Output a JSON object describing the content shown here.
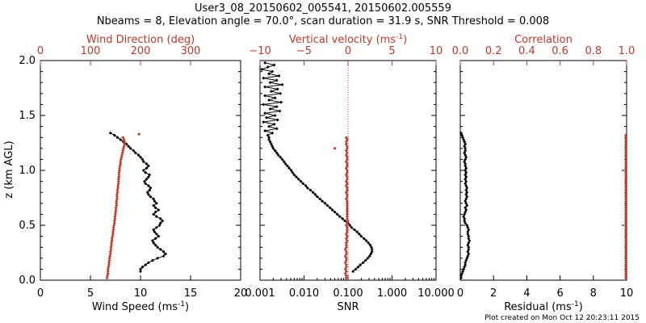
{
  "figure": {
    "title_line1": "User3_08_20150602_005541, 20150602.005559",
    "title_line2": "Nbeams = 8, Elevation angle = 70.0°, scan duration = 31.9 s, SNR Threshold = 0.008",
    "footer": "Plot created on Mon Oct 12 20:23:11 2015",
    "ylabel": "z (km AGL)"
  },
  "colors": {
    "primary": "#000000",
    "secondary": "#c0392b"
  },
  "chart_data": [
    {
      "type": "line",
      "panel": "wind",
      "ylim": [
        0,
        2
      ],
      "yticks": [
        "0.0",
        "0.5",
        "1.0",
        "1.5",
        "2.0"
      ],
      "bottom_axis": {
        "label": "Wind Speed (ms",
        "label_sup": "-1",
        "label_end": ")",
        "range": [
          0,
          20
        ],
        "ticks": [
          "0",
          "5",
          "10",
          "15",
          "20"
        ]
      },
      "top_axis": {
        "label": "Wind Direction (deg)",
        "range": [
          0,
          400
        ],
        "ticks": [
          "0",
          "100",
          "200",
          "300"
        ]
      },
      "series": [
        {
          "axis": "bottom",
          "style": "line-markers",
          "color": "#000000",
          "z": [
            0.08,
            0.1,
            0.12,
            0.14,
            0.16,
            0.18,
            0.2,
            0.22,
            0.24,
            0.26,
            0.28,
            0.3,
            0.32,
            0.34,
            0.36,
            0.38,
            0.4,
            0.42,
            0.44,
            0.46,
            0.48,
            0.5,
            0.52,
            0.54,
            0.56,
            0.58,
            0.6,
            0.62,
            0.64,
            0.66,
            0.68,
            0.7,
            0.72,
            0.74,
            0.76,
            0.78,
            0.8,
            0.82,
            0.84,
            0.86,
            0.88,
            0.9,
            0.92,
            0.94,
            0.96,
            0.98,
            1.0,
            1.02,
            1.04,
            1.06,
            1.08,
            1.1,
            1.12,
            1.14,
            1.16,
            1.18,
            1.2,
            1.22,
            1.24,
            1.26,
            1.28,
            1.3,
            1.32,
            1.34
          ],
          "values": [
            10.0,
            10.0,
            10.2,
            10.5,
            10.8,
            11.2,
            11.7,
            12.3,
            12.5,
            12.3,
            12.0,
            11.7,
            11.5,
            11.3,
            11.2,
            11.5,
            11.8,
            11.6,
            11.4,
            11.3,
            11.6,
            11.9,
            12.0,
            12.2,
            12.0,
            11.6,
            11.3,
            11.5,
            11.8,
            11.5,
            11.3,
            11.6,
            11.4,
            11.3,
            11.0,
            10.8,
            10.7,
            10.9,
            11.0,
            10.8,
            10.5,
            10.4,
            10.6,
            10.8,
            10.9,
            10.5,
            10.3,
            10.6,
            10.8,
            10.6,
            10.3,
            10.2,
            10.0,
            9.8,
            9.5,
            9.3,
            9.0,
            8.8,
            8.6,
            8.3,
            8.0,
            7.7,
            7.4,
            7.0
          ]
        },
        {
          "axis": "top",
          "style": "markers",
          "color": "#c0392b",
          "z": [
            0.02,
            0.04,
            0.06,
            0.08,
            0.1,
            0.12,
            0.14,
            0.16,
            0.18,
            0.2,
            0.22,
            0.24,
            0.26,
            0.28,
            0.3,
            0.32,
            0.34,
            0.36,
            0.38,
            0.4,
            0.42,
            0.44,
            0.46,
            0.48,
            0.5,
            0.52,
            0.54,
            0.56,
            0.58,
            0.6,
            0.62,
            0.64,
            0.66,
            0.68,
            0.7,
            0.72,
            0.74,
            0.76,
            0.78,
            0.8,
            0.82,
            0.84,
            0.86,
            0.88,
            0.9,
            0.92,
            0.94,
            0.96,
            0.98,
            1.0,
            1.02,
            1.04,
            1.06,
            1.08,
            1.1,
            1.12,
            1.14,
            1.16,
            1.18,
            1.2,
            1.22,
            1.24,
            1.26,
            1.28,
            1.3
          ],
          "values": [
            133,
            134,
            135,
            135,
            135,
            136,
            137,
            137,
            138,
            138,
            139,
            140,
            140,
            141,
            141,
            142,
            142,
            143,
            143,
            144,
            145,
            145,
            146,
            146,
            147,
            148,
            148,
            149,
            149,
            150,
            150,
            151,
            151,
            152,
            152,
            152,
            153,
            153,
            153,
            154,
            154,
            155,
            155,
            156,
            156,
            156,
            157,
            157,
            157,
            158,
            158,
            159,
            160,
            160,
            161,
            162,
            163,
            164,
            165,
            166,
            167,
            168,
            168,
            167,
            165
          ]
        },
        {
          "axis": "top",
          "style": "markers",
          "color": "#c0392b",
          "note_free": true,
          "z": [
            1.33
          ],
          "values": [
            197
          ]
        }
      ]
    },
    {
      "type": "line",
      "panel": "snr",
      "ylim": [
        0,
        2
      ],
      "bottom_axis": {
        "label": "SNR",
        "scale": "log",
        "range": [
          0.001,
          10
        ],
        "ticks": [
          "0.001",
          "0.010",
          "0.100",
          "1.000",
          "10.000"
        ]
      },
      "top_axis": {
        "label": "Vertical velocity (ms",
        "label_sup": "-1",
        "label_end": ")",
        "range": [
          -10,
          10
        ],
        "ticks": [
          "−10",
          "−5",
          "0",
          "5",
          "10"
        ],
        "reference_line_at": 0
      },
      "series": [
        {
          "axis": "bottom",
          "style": "line-markers",
          "color": "#000000",
          "z": [
            0.08,
            0.1,
            0.12,
            0.14,
            0.16,
            0.18,
            0.2,
            0.22,
            0.24,
            0.26,
            0.28,
            0.3,
            0.32,
            0.34,
            0.36,
            0.38,
            0.4,
            0.42,
            0.44,
            0.46,
            0.48,
            0.5,
            0.52,
            0.54,
            0.56,
            0.58,
            0.6,
            0.62,
            0.64,
            0.66,
            0.68,
            0.7,
            0.72,
            0.74,
            0.76,
            0.78,
            0.8,
            0.82,
            0.84,
            0.86,
            0.88,
            0.9,
            0.92,
            0.94,
            0.96,
            0.98,
            1.0,
            1.02,
            1.04,
            1.06,
            1.08,
            1.1,
            1.12,
            1.14,
            1.16,
            1.18,
            1.2,
            1.22,
            1.24,
            1.26,
            1.28,
            1.3,
            1.32,
            1.34,
            1.36,
            1.38,
            1.4,
            1.42,
            1.44,
            1.46,
            1.48,
            1.5,
            1.52,
            1.54,
            1.56,
            1.58,
            1.6,
            1.62,
            1.64,
            1.66,
            1.68,
            1.7,
            1.72,
            1.74,
            1.76,
            1.78,
            1.8,
            1.82,
            1.84,
            1.86,
            1.88,
            1.9,
            1.92,
            1.94,
            1.96,
            1.98
          ],
          "values": [
            0.13,
            0.15,
            0.17,
            0.19,
            0.22,
            0.25,
            0.28,
            0.31,
            0.33,
            0.35,
            0.35,
            0.34,
            0.32,
            0.29,
            0.26,
            0.23,
            0.2,
            0.18,
            0.16,
            0.14,
            0.12,
            0.11,
            0.1,
            0.085,
            0.075,
            0.065,
            0.057,
            0.05,
            0.044,
            0.039,
            0.034,
            0.03,
            0.026,
            0.023,
            0.02,
            0.018,
            0.016,
            0.014,
            0.012,
            0.011,
            0.0095,
            0.0085,
            0.0075,
            0.0067,
            0.006,
            0.0055,
            0.0051,
            0.0046,
            0.0042,
            0.0038,
            0.0035,
            0.0032,
            0.0029,
            0.0026,
            0.0024,
            0.0022,
            0.002,
            0.0019,
            0.0018,
            0.0017,
            0.0016,
            0.0016,
            0.0015,
            0.0019,
            0.0013,
            0.0024,
            0.0016,
            0.0021,
            0.0012,
            0.0025,
            0.0014,
            0.0022,
            0.0013,
            0.0028,
            0.0017,
            0.0024,
            0.0012,
            0.003,
            0.0016,
            0.0022,
            0.0013,
            0.0029,
            0.0018,
            0.0025,
            0.0013,
            0.0032,
            0.0017,
            0.0024,
            0.0012,
            0.0027,
            0.0016,
            0.0019,
            0.0011,
            0.0015,
            0.0021,
            0.0013
          ]
        },
        {
          "axis": "top",
          "style": "markers",
          "color": "#c0392b",
          "z": [
            0.02,
            0.04,
            0.06,
            0.08,
            0.1,
            0.12,
            0.14,
            0.16,
            0.18,
            0.2,
            0.22,
            0.24,
            0.26,
            0.28,
            0.3,
            0.32,
            0.34,
            0.36,
            0.38,
            0.4,
            0.42,
            0.44,
            0.46,
            0.48,
            0.5,
            0.52,
            0.54,
            0.56,
            0.58,
            0.6,
            0.62,
            0.64,
            0.66,
            0.68,
            0.7,
            0.72,
            0.74,
            0.76,
            0.78,
            0.8,
            0.82,
            0.84,
            0.86,
            0.88,
            0.9,
            0.92,
            0.94,
            0.96,
            0.98,
            1.0,
            1.02,
            1.04,
            1.06,
            1.08,
            1.1,
            1.12,
            1.14,
            1.16,
            1.18,
            1.2,
            1.22,
            1.24,
            1.26,
            1.28,
            1.3
          ],
          "values": [
            -0.2,
            -0.2,
            -0.3,
            -0.2,
            -0.3,
            -0.2,
            -0.2,
            -0.3,
            -0.2,
            -0.2,
            -0.3,
            -0.2,
            -0.2,
            -0.3,
            -0.2,
            -0.2,
            -0.2,
            -0.1,
            -0.2,
            -0.1,
            -0.2,
            -0.1,
            -0.1,
            -0.1,
            -0.2,
            -0.1,
            0.0,
            -0.1,
            -0.1,
            -0.1,
            -0.1,
            -0.1,
            -0.1,
            -0.1,
            -0.1,
            -0.1,
            -0.2,
            -0.1,
            -0.1,
            -0.2,
            -0.1,
            -0.1,
            -0.2,
            -0.1,
            -0.2,
            -0.1,
            -0.1,
            -0.2,
            -0.1,
            -0.1,
            -0.2,
            -0.1,
            -0.1,
            -0.2,
            -0.1,
            -0.1,
            -0.2,
            -0.1,
            -0.2,
            -0.1,
            -0.1,
            -0.2,
            -0.2,
            -0.1,
            -0.2
          ]
        },
        {
          "axis": "top",
          "style": "markers",
          "color": "#c0392b",
          "z": [
            1.2
          ],
          "values": [
            -1.5
          ]
        }
      ]
    },
    {
      "type": "line",
      "panel": "residual",
      "ylim": [
        0,
        2
      ],
      "bottom_axis": {
        "label": "Residual (ms",
        "label_sup": "-1",
        "label_end": ")",
        "range": [
          0,
          10
        ],
        "ticks": [
          "0",
          "2",
          "4",
          "6",
          "8",
          "10"
        ]
      },
      "top_axis": {
        "label": "Correlation",
        "range": [
          0,
          1
        ],
        "ticks": [
          "0.0",
          "0.2",
          "0.4",
          "0.6",
          "0.8",
          "1.0"
        ]
      },
      "series": [
        {
          "axis": "bottom",
          "style": "line-markers",
          "color": "#000000",
          "z": [
            0.02,
            0.04,
            0.06,
            0.08,
            0.1,
            0.12,
            0.14,
            0.16,
            0.18,
            0.2,
            0.22,
            0.24,
            0.26,
            0.28,
            0.3,
            0.32,
            0.34,
            0.36,
            0.38,
            0.4,
            0.42,
            0.44,
            0.46,
            0.48,
            0.5,
            0.52,
            0.54,
            0.56,
            0.58,
            0.6,
            0.62,
            0.64,
            0.66,
            0.68,
            0.7,
            0.72,
            0.74,
            0.76,
            0.78,
            0.8,
            0.82,
            0.84,
            0.86,
            0.88,
            0.9,
            0.92,
            0.94,
            0.96,
            0.98,
            1.0,
            1.02,
            1.04,
            1.06,
            1.08,
            1.1,
            1.12,
            1.14,
            1.16,
            1.18,
            1.2,
            1.22,
            1.24,
            1.26,
            1.28,
            1.3,
            1.32,
            1.34
          ],
          "values": [
            0.05,
            0.05,
            0.1,
            0.15,
            0.2,
            0.25,
            0.3,
            0.3,
            0.35,
            0.4,
            0.45,
            0.5,
            0.45,
            0.5,
            0.5,
            0.45,
            0.5,
            0.55,
            0.5,
            0.5,
            0.45,
            0.45,
            0.5,
            0.45,
            0.4,
            0.3,
            0.25,
            0.25,
            0.2,
            0.25,
            0.3,
            0.35,
            0.3,
            0.4,
            0.35,
            0.3,
            0.35,
            0.4,
            0.35,
            0.4,
            0.35,
            0.4,
            0.35,
            0.3,
            0.35,
            0.3,
            0.35,
            0.3,
            0.35,
            0.3,
            0.35,
            0.3,
            0.3,
            0.25,
            0.3,
            0.35,
            0.3,
            0.25,
            0.3,
            0.3,
            0.25,
            0.3,
            0.25,
            0.2,
            0.15,
            0.1,
            0.05
          ]
        },
        {
          "axis": "top",
          "style": "markers",
          "color": "#c0392b",
          "z": [
            0.02,
            0.04,
            0.06,
            0.08,
            0.1,
            0.12,
            0.14,
            0.16,
            0.18,
            0.2,
            0.22,
            0.24,
            0.26,
            0.28,
            0.3,
            0.32,
            0.34,
            0.36,
            0.38,
            0.4,
            0.42,
            0.44,
            0.46,
            0.48,
            0.5,
            0.52,
            0.54,
            0.56,
            0.58,
            0.6,
            0.62,
            0.64,
            0.66,
            0.68,
            0.7,
            0.72,
            0.74,
            0.76,
            0.78,
            0.8,
            0.82,
            0.84,
            0.86,
            0.88,
            0.9,
            0.92,
            0.94,
            0.96,
            0.98,
            1.0,
            1.02,
            1.04,
            1.06,
            1.08,
            1.1,
            1.12,
            1.14,
            1.16,
            1.18,
            1.2,
            1.22,
            1.24,
            1.26,
            1.28,
            1.3,
            1.32
          ],
          "values": [
            0.995,
            0.995,
            0.995,
            0.995,
            0.995,
            0.995,
            0.995,
            0.995,
            0.995,
            0.995,
            0.995,
            0.995,
            0.995,
            0.995,
            0.995,
            0.995,
            0.995,
            0.995,
            0.995,
            0.995,
            0.995,
            0.995,
            0.995,
            0.995,
            0.995,
            0.995,
            0.995,
            0.995,
            0.995,
            0.995,
            0.995,
            0.995,
            0.995,
            0.995,
            0.995,
            0.995,
            0.995,
            0.995,
            0.995,
            0.995,
            0.995,
            0.995,
            0.995,
            0.995,
            0.995,
            0.995,
            0.995,
            0.995,
            0.995,
            0.995,
            0.995,
            0.995,
            0.995,
            0.995,
            0.995,
            0.995,
            0.995,
            0.995,
            0.995,
            0.995,
            0.995,
            0.995,
            0.995,
            0.995,
            0.995,
            0.995
          ]
        }
      ]
    }
  ]
}
